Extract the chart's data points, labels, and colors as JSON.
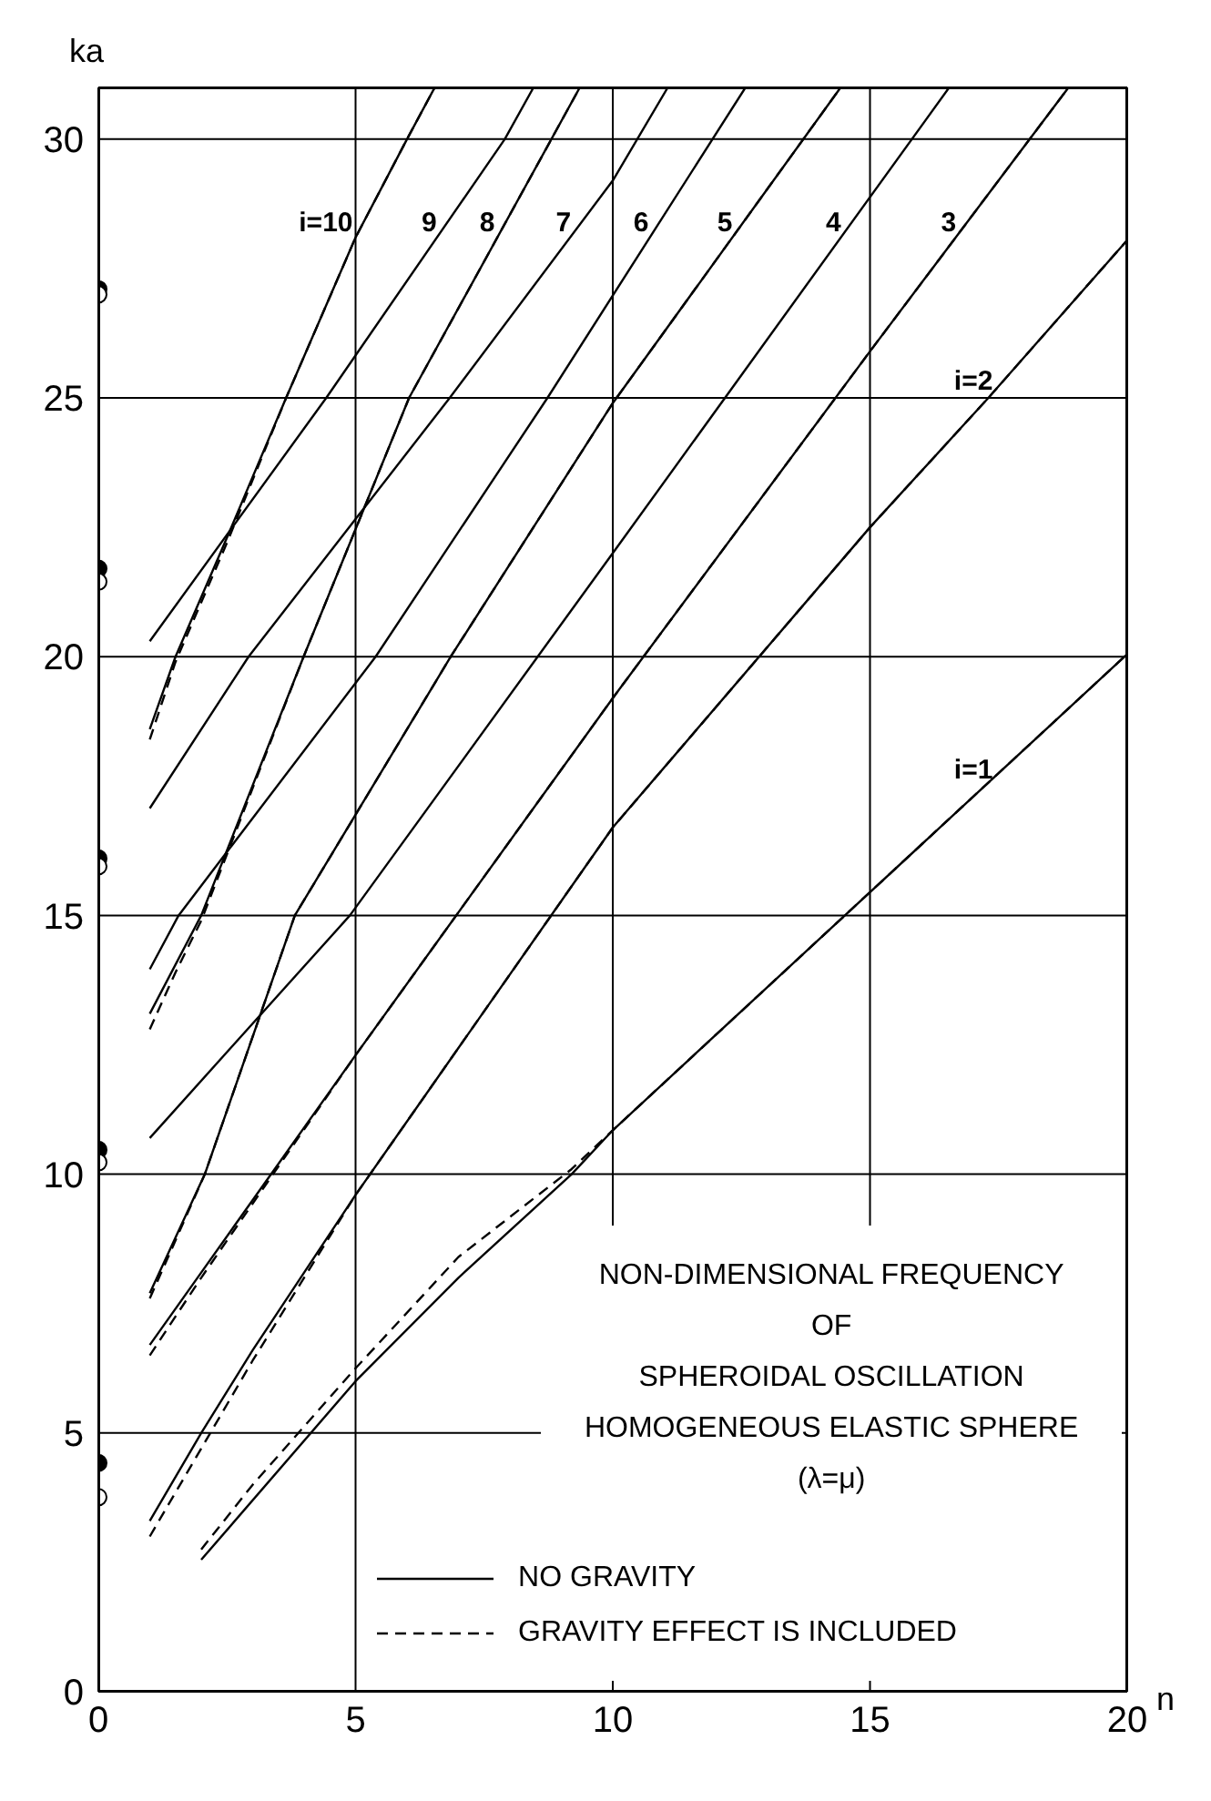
{
  "chart_data": {
    "type": "line",
    "title": "NON-DIMENSIONAL FREQUENCY\nOF\nSPHEROIDAL OSCILLATION\nHOMOGENEOUS ELASTIC SPHERE\n(λ=μ)",
    "xlabel": "n",
    "ylabel": "ka",
    "xlim": [
      0,
      20
    ],
    "ylim": [
      0,
      31
    ],
    "xticks": [
      0,
      5,
      10,
      15,
      20
    ],
    "yticks": [
      0,
      5,
      10,
      15,
      20,
      25,
      30
    ],
    "grid": true,
    "legend": "bottom right",
    "annotations": [
      {
        "text": "i=10",
        "x": 5.16,
        "y": 28.4
      },
      {
        "text": "9",
        "x": 6.79,
        "y": 28.4
      },
      {
        "text": "8",
        "x": 7.92,
        "y": 28.4
      },
      {
        "text": "7",
        "x": 9.4,
        "y": 28.4
      },
      {
        "text": "6",
        "x": 10.91,
        "y": 28.4
      },
      {
        "text": "5",
        "x": 12.54,
        "y": 28.4
      },
      {
        "text": "4",
        "x": 14.65,
        "y": 28.4
      },
      {
        "text": "3",
        "x": 16.89,
        "y": 28.4
      },
      {
        "text": "i=2",
        "x": 17.6,
        "y": 25.34
      },
      {
        "text": "i=1",
        "x": 17.6,
        "y": 17.84
      }
    ],
    "series": [
      {
        "name": "NO GRAVITY",
        "color": "#000000",
        "line_style": "solid",
        "x": [
          1,
          1.5,
          2.5,
          3.65,
          5,
          6,
          6.54
        ],
        "values": [
          18.6,
          20.0,
          22.3,
          25,
          28.1,
          30,
          31
        ]
      },
      {
        "type": "line",
        "name": "GRAVITY EFFECT IS INCLUDED",
        "color": "#000000",
        "line_style": "dashed",
        "x": [
          1,
          1.5,
          2.5,
          3.65,
          5,
          6,
          6.54
        ],
        "values": [
          18.4,
          19.9,
          22.2,
          25,
          28.1,
          30,
          31
        ]
      },
      {
        "color": "#000000",
        "line_style": "solid",
        "x": [
          1,
          4.43,
          7.9,
          8.46
        ],
        "values": [
          20.3,
          25,
          30,
          31
        ]
      },
      {
        "color": "#000000",
        "line_style": "solid",
        "x": [
          1,
          2,
          3.99,
          6.04,
          9.36
        ],
        "values": [
          13.1,
          15,
          20,
          25,
          31
        ]
      },
      {
        "color": "#000000",
        "line_style": "dashed",
        "x": [
          1,
          1.5,
          2,
          3.99,
          6.04,
          9.36
        ],
        "values": [
          12.8,
          13.9,
          14.9,
          20,
          25,
          31
        ]
      },
      {
        "color": "#000000",
        "line_style": "solid",
        "x": [
          1,
          2.92,
          6.83,
          10,
          11.07
        ],
        "values": [
          17.07,
          20,
          25,
          29.2,
          31
        ]
      },
      {
        "color": "#000000",
        "line_style": "solid",
        "x": [
          1,
          1.56,
          5.39,
          8.73,
          12.58
        ],
        "values": [
          13.96,
          15,
          20,
          25,
          31
        ]
      },
      {
        "color": "#000000",
        "line_style": "solid",
        "x": [
          1,
          2.07,
          3.82,
          6.85,
          10,
          14.43
        ],
        "values": [
          7.7,
          10,
          15,
          20,
          24.9,
          31
        ]
      },
      {
        "color": "#000000",
        "line_style": "dashed",
        "x": [
          1,
          2.07,
          3.82,
          6.85,
          10,
          14.43
        ],
        "values": [
          7.6,
          10,
          15,
          20,
          24.9,
          31
        ]
      },
      {
        "color": "#000000",
        "line_style": "solid",
        "x": [
          1,
          4.89,
          8.54,
          10,
          16.54
        ],
        "values": [
          10.7,
          15,
          20,
          22,
          31
        ]
      },
      {
        "color": "#000000",
        "line_style": "solid",
        "x": [
          1,
          2,
          5,
          10,
          15,
          18.86
        ],
        "values": [
          6.7,
          8.1,
          12.3,
          19.2,
          25.9,
          31
        ]
      },
      {
        "color": "#000000",
        "line_style": "dashed",
        "x": [
          1,
          2,
          5,
          10,
          15,
          18.86
        ],
        "values": [
          6.5,
          8.0,
          12.3,
          19.2,
          25.9,
          31
        ]
      },
      {
        "color": "#000000",
        "line_style": "solid",
        "x": [
          1,
          2,
          3,
          5,
          10,
          15,
          17.3,
          20
        ],
        "values": [
          3.3,
          5.0,
          6.6,
          9.6,
          16.7,
          22.5,
          25,
          28.05
        ]
      },
      {
        "color": "#000000",
        "line_style": "dashed",
        "x": [
          1,
          2,
          3,
          5,
          10,
          15,
          17.3,
          20
        ],
        "values": [
          3.0,
          4.7,
          6.4,
          9.6,
          16.7,
          22.5,
          25,
          28.05
        ]
      },
      {
        "color": "#000000",
        "line_style": "solid",
        "x": [
          2,
          5,
          7,
          9.2,
          10,
          15,
          20
        ],
        "values": [
          2.55,
          6.0,
          8.0,
          10,
          10.85,
          15.45,
          20.05
        ]
      },
      {
        "color": "#000000",
        "line_style": "dashed",
        "x": [
          2,
          3,
          5,
          7,
          9.2,
          10,
          15,
          20
        ],
        "values": [
          2.75,
          4.0,
          6.25,
          8.4,
          10.1,
          10.85,
          15.45,
          20.05
        ]
      },
      {
        "type": "scatter",
        "color": "#000000",
        "marker": "circle",
        "x": [
          0,
          0,
          0,
          0,
          0
        ],
        "values": [
          4.42,
          10.47,
          16.1,
          21.7,
          27.1
        ]
      },
      {
        "type": "scatter",
        "color": "#ffffff",
        "marker": "circle",
        "x": [
          0,
          0,
          0,
          0,
          0
        ],
        "values": [
          3.76,
          10.23,
          15.95,
          21.45,
          27.0
        ]
      }
    ]
  }
}
